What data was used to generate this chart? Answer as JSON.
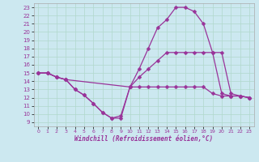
{
  "xlabel": "Windchill (Refroidissement éolien,°C)",
  "bg_color": "#cce8f0",
  "line_color": "#993399",
  "grid_color": "#b0d8cc",
  "xlim": [
    -0.5,
    23.5
  ],
  "ylim": [
    8.5,
    23.5
  ],
  "xticks": [
    0,
    1,
    2,
    3,
    4,
    5,
    6,
    7,
    8,
    9,
    10,
    11,
    12,
    13,
    14,
    15,
    16,
    17,
    18,
    19,
    20,
    21,
    22,
    23
  ],
  "yticks": [
    9,
    10,
    11,
    12,
    13,
    14,
    15,
    16,
    17,
    18,
    19,
    20,
    21,
    22,
    23
  ],
  "curve1_x": [
    0,
    1,
    2,
    3,
    4,
    5,
    6,
    7,
    8,
    9,
    10,
    11,
    12,
    13,
    14,
    15,
    16,
    17,
    18,
    19,
    20,
    21,
    22,
    23
  ],
  "curve1_y": [
    15,
    15,
    14.5,
    14.2,
    13.0,
    12.3,
    11.3,
    10.2,
    9.5,
    9.5,
    13.3,
    13.3,
    13.3,
    13.3,
    13.3,
    13.3,
    13.3,
    13.3,
    13.3,
    12.5,
    12.2,
    12.2,
    12.2,
    12.0
  ],
  "curve2_x": [
    0,
    1,
    2,
    3,
    4,
    5,
    6,
    7,
    8,
    9,
    10,
    11,
    12,
    13,
    14,
    15,
    16,
    17,
    18,
    19,
    20,
    21,
    22,
    23
  ],
  "curve2_y": [
    15,
    15,
    14.5,
    14.2,
    13.0,
    12.3,
    11.3,
    10.2,
    9.5,
    9.8,
    13.3,
    14.5,
    15.5,
    16.5,
    17.5,
    17.5,
    17.5,
    17.5,
    17.5,
    17.5,
    17.5,
    12.5,
    12.2,
    12.0
  ],
  "curve3_x": [
    0,
    1,
    2,
    3,
    10,
    11,
    12,
    13,
    14,
    15,
    16,
    17,
    18,
    19,
    20,
    21,
    22,
    23
  ],
  "curve3_y": [
    15,
    15,
    14.5,
    14.2,
    13.3,
    15.5,
    18.0,
    20.5,
    21.5,
    23.0,
    23.0,
    22.5,
    21.0,
    17.5,
    12.5,
    12.2,
    12.2,
    12.0
  ],
  "markersize": 2.5,
  "linewidth": 0.9,
  "xlabel_fontsize": 5.5,
  "tick_fontsize": 5.0
}
